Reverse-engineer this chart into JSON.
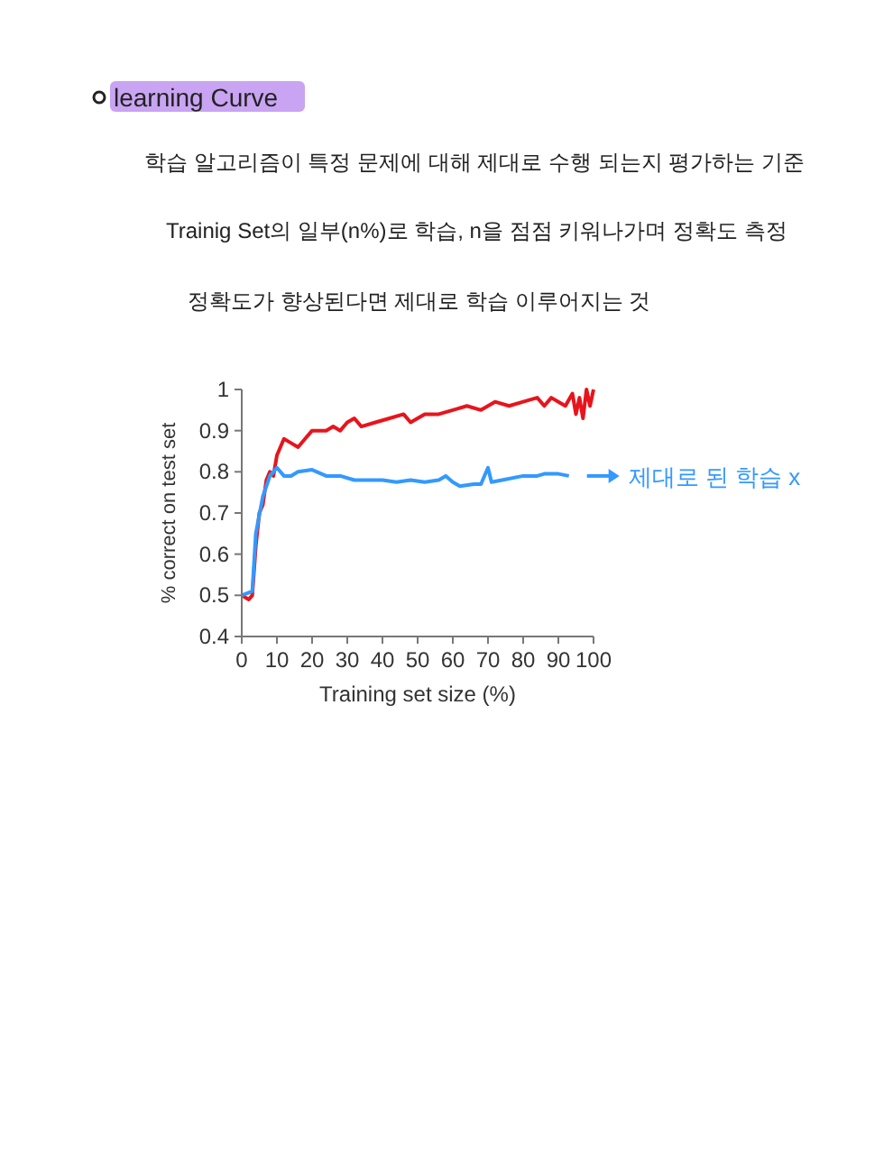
{
  "chart_data": {
    "type": "line",
    "title": "learning Curve",
    "xlabel": "Training set size (%)",
    "ylabel": "% correct on test set",
    "xlim": [
      0,
      100
    ],
    "xticks": [
      0,
      10,
      20,
      30,
      40,
      50,
      60,
      70,
      80,
      90,
      100
    ],
    "ylim": [
      0.4,
      1
    ],
    "yticks": [
      0.4,
      0.5,
      0.6,
      0.7,
      0.8,
      0.9,
      1
    ],
    "grid": false,
    "marker": "none",
    "line_style": "solid",
    "series": [
      {
        "color": "#e8141c",
        "x": [
          0,
          2,
          3,
          4,
          5,
          6,
          7,
          8,
          9,
          10,
          12,
          14,
          16,
          18,
          20,
          24,
          26,
          28,
          30,
          32,
          34,
          38,
          42,
          46,
          48,
          52,
          56,
          60,
          64,
          68,
          72,
          76,
          80,
          84,
          86,
          88,
          90,
          92,
          94,
          95,
          96,
          97,
          98,
          99,
          100
        ],
        "values": [
          0.5,
          0.49,
          0.5,
          0.62,
          0.7,
          0.72,
          0.78,
          0.8,
          0.79,
          0.84,
          0.88,
          0.87,
          0.86,
          0.88,
          0.9,
          0.9,
          0.91,
          0.9,
          0.92,
          0.93,
          0.91,
          0.92,
          0.93,
          0.94,
          0.92,
          0.94,
          0.94,
          0.95,
          0.96,
          0.95,
          0.97,
          0.96,
          0.97,
          0.98,
          0.96,
          0.98,
          0.97,
          0.96,
          0.99,
          0.94,
          0.98,
          0.93,
          1.0,
          0.96,
          1.0
        ]
      },
      {
        "color": "#3399ff",
        "x": [
          0,
          3,
          4,
          6,
          8,
          10,
          12,
          14,
          16,
          20,
          24,
          28,
          32,
          40,
          44,
          48,
          52,
          56,
          58,
          60,
          62,
          66,
          68,
          70,
          71,
          74,
          80,
          84,
          86,
          90,
          93
        ],
        "values": [
          0.5,
          0.51,
          0.65,
          0.74,
          0.79,
          0.81,
          0.79,
          0.79,
          0.8,
          0.805,
          0.79,
          0.79,
          0.78,
          0.78,
          0.775,
          0.78,
          0.775,
          0.78,
          0.79,
          0.775,
          0.765,
          0.77,
          0.77,
          0.81,
          0.775,
          0.78,
          0.79,
          0.79,
          0.795,
          0.795,
          0.79
        ]
      }
    ],
    "annotations": [
      "학습 알고리즘이 특정 문제에 대해 제대로 수행 되는지 평가하는 기준",
      "Trainig Set의 일부(n%)로 학습, n을 점점 키워나가며 정확도 측정",
      "정확도가 향상된다면 제대로 학습 이루어지는 것",
      {
        "text": "제대로 된 학습 x",
        "x": 93,
        "y": 0.79
      }
    ]
  }
}
